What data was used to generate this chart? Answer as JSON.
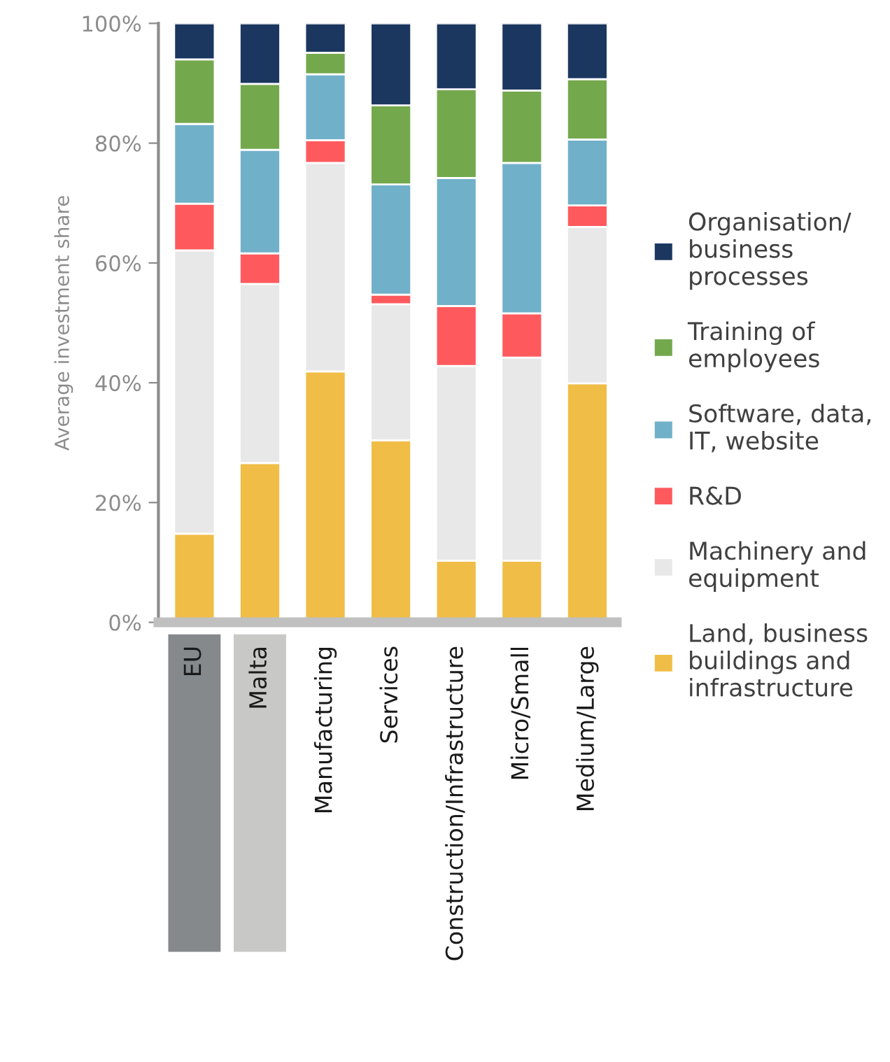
{
  "chart_data": {
    "type": "bar",
    "stacked": true,
    "ylabel": "Average investment share",
    "categories": [
      "EU",
      "Malta",
      "Manufacturing",
      "Services",
      "Construction/Infrastructure",
      "Micro/Small",
      "Medium/Large"
    ],
    "series": [
      {
        "name": "Land, business\nbuildings and\ninfrastructure",
        "color": "#f0bd47",
        "values": [
          14.8,
          26.6,
          41.9,
          30.4,
          10.3,
          10.3,
          39.9
        ]
      },
      {
        "name": "Machinery and\nequipment",
        "color": "#e8e8e8",
        "values": [
          47.3,
          29.9,
          34.8,
          22.7,
          32.5,
          33.9,
          26.1
        ]
      },
      {
        "name": "R&D",
        "color": "#fe5a5e",
        "values": [
          7.8,
          5.1,
          3.8,
          1.6,
          10.0,
          7.4,
          3.6
        ]
      },
      {
        "name": "Software, data,\nIT, website",
        "color": "#71b0c9",
        "values": [
          13.3,
          17.3,
          11.0,
          18.4,
          21.4,
          25.1,
          11.0
        ]
      },
      {
        "name": "Training of\nemployees",
        "color": "#74a84d",
        "values": [
          10.8,
          11.0,
          3.6,
          13.2,
          14.8,
          12.1,
          10.1
        ]
      },
      {
        "name": "Organisation/\nbusiness\nprocesses",
        "color": "#1b375f",
        "values": [
          6.0,
          10.1,
          4.9,
          13.7,
          11.0,
          11.2,
          9.3
        ]
      }
    ],
    "ylim": [
      0,
      100
    ],
    "yticks": [
      {
        "value": 0,
        "label": "0%"
      },
      {
        "value": 20,
        "label": "20%"
      },
      {
        "value": 40,
        "label": "40%"
      },
      {
        "value": 60,
        "label": "60%"
      },
      {
        "value": 80,
        "label": "80%"
      },
      {
        "value": 100,
        "label": "100%"
      }
    ],
    "grid": false,
    "legend": "right"
  }
}
